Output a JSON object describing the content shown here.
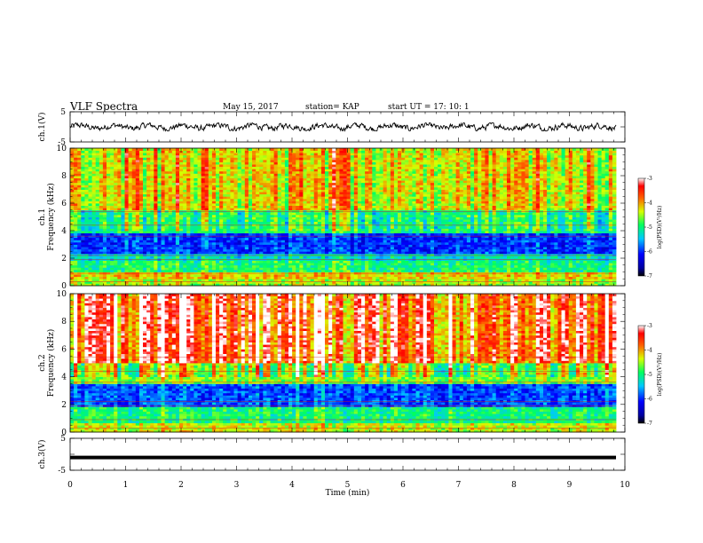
{
  "header": {
    "title": "VLF Spectra",
    "date": "May 15, 2017",
    "station": "station= KAP",
    "start_ut": "start  UT  =   17: 10: 1"
  },
  "chart_data": [
    {
      "type": "line",
      "panel": "ch1-waveform",
      "ylabel": "ch.1(V)",
      "ylim": [
        -5,
        5
      ],
      "yticks": [
        "5",
        "-5"
      ],
      "xlim": [
        0,
        10
      ],
      "description_series": "continuous noisy voltage trace, roughly -1.2 to 1.3 V"
    },
    {
      "type": "heatmap",
      "panel": "ch1-spectrogram",
      "ylabel": "ch.1\nFrequency (kHz)",
      "ylabel_line1": "ch.1",
      "ylabel_line2": "Frequency (kHz)",
      "ylim": [
        0,
        10
      ],
      "yticks": [
        "0",
        "2",
        "4",
        "6",
        "8",
        "10"
      ],
      "xlim": [
        0,
        10
      ],
      "colorbar": {
        "label": "log(PSD)(V²/Hz)",
        "range": [
          -7,
          -3
        ],
        "ticks": [
          "-3",
          "-4",
          "-5",
          "-6",
          "-7"
        ]
      },
      "bands": [
        {
          "f_low": 0.0,
          "f_high": 0.5,
          "level": -4.5
        },
        {
          "f_low": 0.5,
          "f_high": 1.0,
          "level": -4.2
        },
        {
          "f_low": 1.0,
          "f_high": 1.8,
          "level": -5.0
        },
        {
          "f_low": 1.8,
          "f_high": 2.4,
          "level": -5.3
        },
        {
          "f_low": 2.4,
          "f_high": 3.8,
          "level": -6.0
        },
        {
          "f_low": 3.8,
          "f_high": 5.5,
          "level": -5.0
        },
        {
          "f_low": 5.5,
          "f_high": 10.0,
          "level": -4.3
        }
      ]
    },
    {
      "type": "heatmap",
      "panel": "ch2-spectrogram",
      "ylabel_line1": "ch.2",
      "ylabel_line2": "Frequency (kHz)",
      "ylim": [
        0,
        10
      ],
      "yticks": [
        "0",
        "2",
        "4",
        "6",
        "8",
        "10"
      ],
      "xlim": [
        0,
        10
      ],
      "colorbar": {
        "label": "log(PSD)(V²/Hz)",
        "range": [
          -7,
          -3
        ],
        "ticks": [
          "-3",
          "-4",
          "-5",
          "-6",
          "-7"
        ]
      },
      "bands": [
        {
          "f_low": 0.0,
          "f_high": 0.6,
          "level": -4.4
        },
        {
          "f_low": 0.6,
          "f_high": 1.8,
          "level": -5.0
        },
        {
          "f_low": 1.8,
          "f_high": 3.5,
          "level": -5.9
        },
        {
          "f_low": 3.5,
          "f_high": 5.0,
          "level": -4.6
        },
        {
          "f_low": 5.0,
          "f_high": 10.0,
          "level": -3.6
        }
      ]
    },
    {
      "type": "line",
      "panel": "ch3-waveform",
      "ylabel": "ch.3(V)",
      "ylim": [
        -5,
        5
      ],
      "yticks": [
        "5",
        "-5"
      ],
      "xlim": [
        0,
        10
      ],
      "xlabel": "Time (min)",
      "xticks": [
        "0",
        "1",
        "2",
        "3",
        "4",
        "5",
        "6",
        "7",
        "8",
        "9",
        "10"
      ],
      "constant_value": -1.0
    }
  ]
}
